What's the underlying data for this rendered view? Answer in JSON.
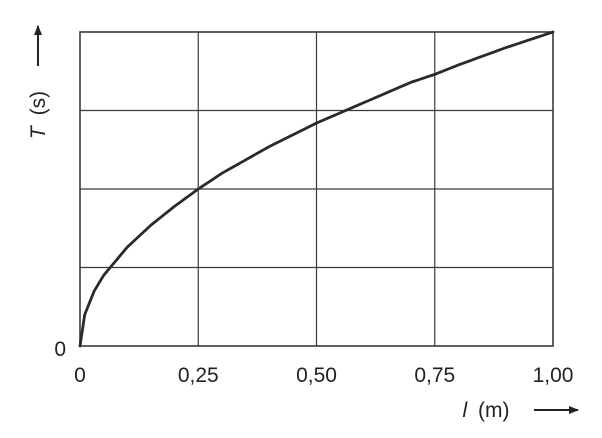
{
  "chart_data": {
    "type": "line",
    "title": "",
    "xlabel": {
      "symbol": "l",
      "unit": "(m)"
    },
    "ylabel": {
      "symbol": "T",
      "unit": "(s)"
    },
    "xlim": [
      0,
      1.0
    ],
    "x_ticks": [
      "0",
      "0,25",
      "0,50",
      "0,75",
      "1,00"
    ],
    "y_ticks": [
      "0"
    ],
    "grid": true,
    "legend": "none",
    "series": [
      {
        "x": [
          0,
          0.01,
          0.03,
          0.05,
          0.1,
          0.15,
          0.2,
          0.25,
          0.3,
          0.4,
          0.5,
          0.6,
          0.7,
          0.75,
          0.8,
          0.9,
          1.0
        ],
        "y": [
          0,
          0.2,
          0.35,
          0.45,
          0.63,
          0.77,
          0.89,
          1.0,
          1.1,
          1.27,
          1.42,
          1.55,
          1.68,
          1.73,
          1.79,
          1.9,
          2.0
        ]
      }
    ],
    "colors": {
      "curve": "#2a2a2a",
      "grid": "#3a3a3a",
      "text": "#222222"
    }
  }
}
